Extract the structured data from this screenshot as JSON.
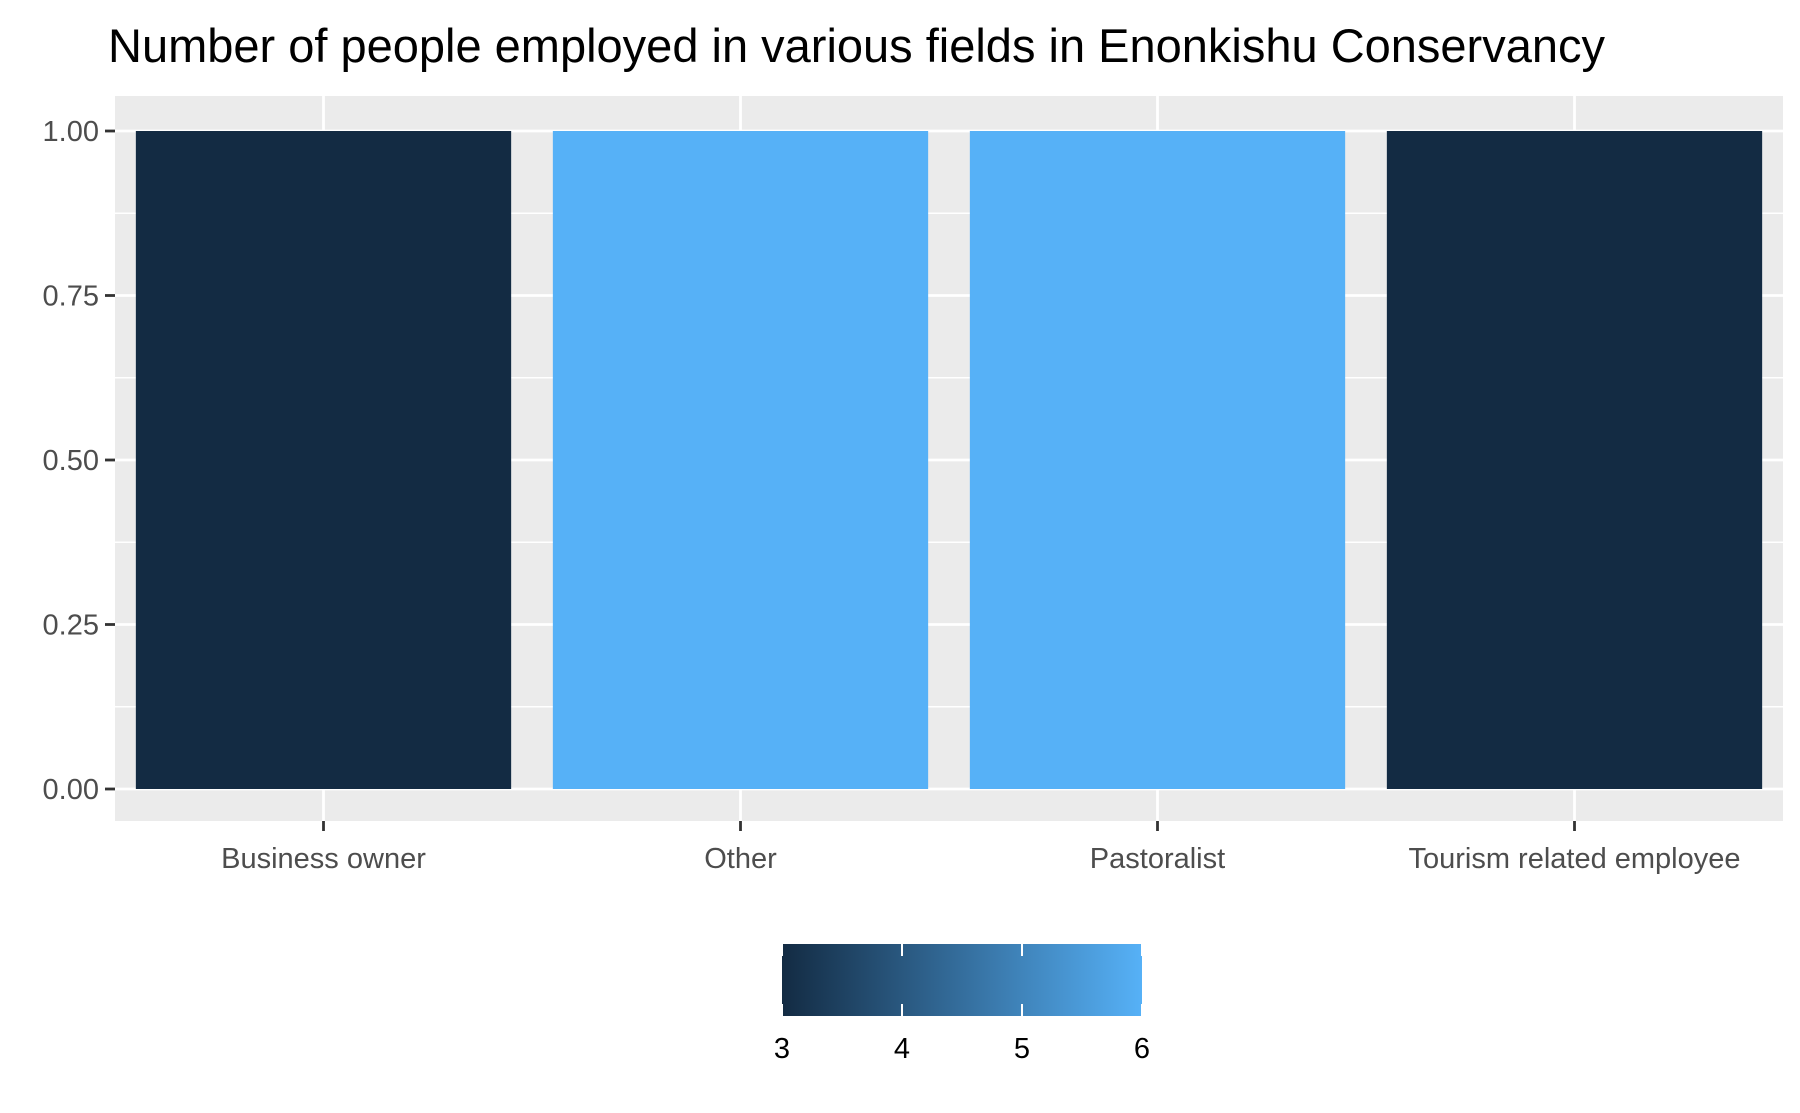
{
  "chart_data": {
    "type": "bar",
    "title": "Number of people employed in various fields in Enonkishu Conservancy",
    "xlabel": "",
    "ylabel": "",
    "categories": [
      "Business owner",
      "Other",
      "Pastoralist",
      "Tourism related employee"
    ],
    "values": [
      1,
      1,
      1,
      1
    ],
    "fill_values": [
      3,
      6,
      6,
      3
    ],
    "ylim": [
      0,
      1.05
    ],
    "y_ticks": [
      0,
      0.25,
      0.5,
      0.75,
      1
    ],
    "y_tick_labels": [
      "0.00",
      "0.25",
      "0.50",
      "0.75",
      "1.00"
    ],
    "grid": true,
    "legend": {
      "placement": "bottom",
      "type": "colorbar",
      "range": [
        3,
        6
      ],
      "ticks": [
        3,
        4,
        5,
        6
      ],
      "tick_labels": [
        "3",
        "4",
        "5",
        "6"
      ],
      "low_color": "#132B43",
      "high_color": "#56B1F7"
    },
    "panel_color": "#EBEBEB",
    "grid_color": "#FFFFFF"
  }
}
